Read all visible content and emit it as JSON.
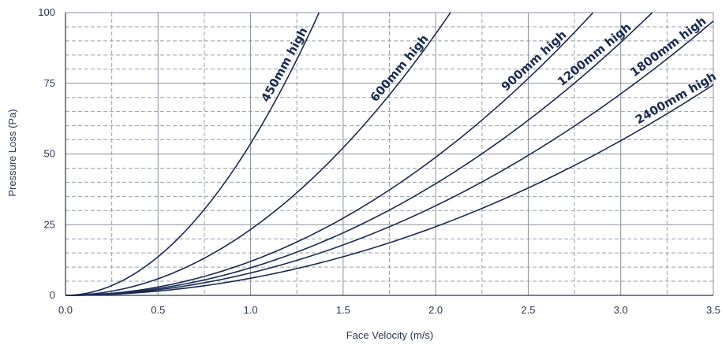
{
  "chart_data": {
    "type": "line",
    "title": "",
    "xlabel": "Face Velocity (m/s)",
    "ylabel": "Pressure Loss (Pa)",
    "xlim": [
      0.0,
      3.5
    ],
    "ylim": [
      0,
      100
    ],
    "x_ticks": [
      "0.0",
      "0.5",
      "1.0",
      "1.5",
      "2.0",
      "2.5",
      "3.0",
      "3.5"
    ],
    "y_ticks": [
      "0",
      "25",
      "50",
      "75",
      "100"
    ],
    "grid": "on",
    "line_color": "#1b2a52",
    "series": [
      {
        "name": "450mm high",
        "x": [
          0.0,
          0.25,
          0.5,
          0.75,
          1.0,
          1.25,
          1.37
        ],
        "y": [
          0,
          3.4,
          13.5,
          30.4,
          54,
          84.4,
          100
        ]
      },
      {
        "name": "600mm high",
        "x": [
          0.0,
          0.5,
          1.0,
          1.5,
          2.0,
          2.08
        ],
        "y": [
          0,
          5.8,
          23.2,
          52.2,
          92.8,
          100
        ]
      },
      {
        "name": "900mm high",
        "x": [
          0.0,
          0.5,
          1.0,
          1.5,
          2.0,
          2.5,
          2.85
        ],
        "y": [
          0,
          3.2,
          12.3,
          27.3,
          49.5,
          75.5,
          100
        ]
      },
      {
        "name": "1200mm high",
        "x": [
          0.0,
          0.5,
          1.0,
          1.5,
          2.0,
          2.5,
          3.0,
          3.17
        ],
        "y": [
          0,
          2.5,
          9.9,
          22.2,
          39.5,
          61.5,
          88.5,
          100
        ]
      },
      {
        "name": "1800mm high",
        "x": [
          0.0,
          0.5,
          1.0,
          1.5,
          2.0,
          2.5,
          3.0,
          3.5
        ],
        "y": [
          0,
          2.0,
          8.0,
          17.9,
          31.7,
          49.5,
          71.2,
          97.0
        ]
      },
      {
        "name": "2400mm high",
        "x": [
          0.0,
          0.5,
          1.0,
          1.5,
          2.0,
          2.5,
          3.0,
          3.5
        ],
        "y": [
          0,
          1.5,
          6.1,
          13.7,
          24.3,
          37.9,
          54.6,
          74.5
        ]
      }
    ]
  }
}
